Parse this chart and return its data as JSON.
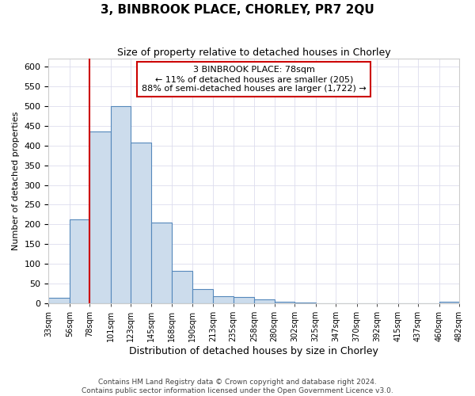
{
  "title": "3, BINBROOK PLACE, CHORLEY, PR7 2QU",
  "subtitle": "Size of property relative to detached houses in Chorley",
  "xlabel": "Distribution of detached houses by size in Chorley",
  "ylabel": "Number of detached properties",
  "footer_line1": "Contains HM Land Registry data © Crown copyright and database right 2024.",
  "footer_line2": "Contains public sector information licensed under the Open Government Licence v3.0.",
  "annotation_title": "3 BINBROOK PLACE: 78sqm",
  "annotation_line1": "← 11% of detached houses are smaller (205)",
  "annotation_line2": "88% of semi-detached houses are larger (1,722) →",
  "property_size": 78,
  "bar_color": "#ccdcec",
  "bar_edge_color": "#5588bb",
  "vline_color": "#cc0000",
  "annotation_box_edgecolor": "#cc0000",
  "bins": [
    33,
    56,
    78,
    101,
    123,
    145,
    168,
    190,
    213,
    235,
    258,
    280,
    302,
    325,
    347,
    370,
    392,
    415,
    437,
    460,
    482
  ],
  "values": [
    15,
    212,
    435,
    500,
    408,
    205,
    83,
    36,
    19,
    17,
    11,
    5,
    2,
    1,
    1,
    1,
    1,
    0,
    0,
    4
  ],
  "ylim": [
    0,
    620
  ],
  "yticks": [
    0,
    50,
    100,
    150,
    200,
    250,
    300,
    350,
    400,
    450,
    500,
    550,
    600
  ],
  "background_color": "#ffffff",
  "plot_bg_color": "#ffffff",
  "grid_color": "#ddddee"
}
